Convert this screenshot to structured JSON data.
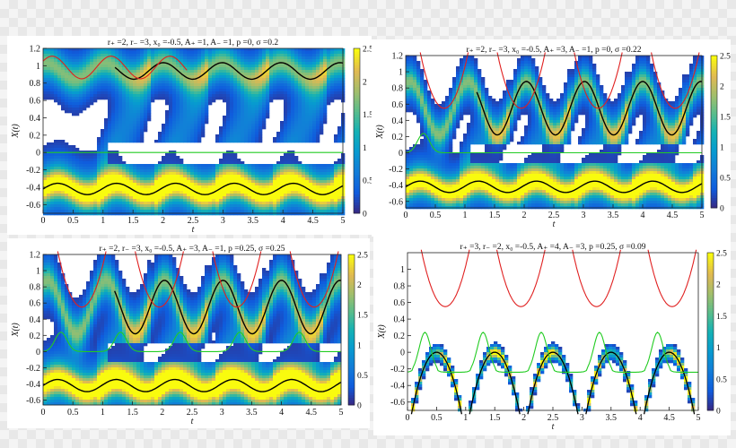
{
  "chart_data": [
    {
      "type": "heatmap",
      "title": "r₊ =2, r₋ =3, x₀ =-0.5, A₊ =1, A₋ =1, p =0, σ =0.2",
      "xlabel": "t",
      "ylabel": "X(t)",
      "xlim": [
        0,
        5
      ],
      "ylim": [
        -0.7,
        1.2
      ],
      "xticks": [
        "0",
        "0.5",
        "1",
        "1.5",
        "2",
        "2.5",
        "3",
        "3.5",
        "4",
        "4.5",
        "5"
      ],
      "yticks": [
        "-0.6",
        "-0.4",
        "-0.2",
        "0",
        "0.2",
        "0.4",
        "0.6",
        "0.8",
        "1",
        "1.2"
      ],
      "colorbar": {
        "range": [
          0,
          2.5
        ],
        "ticks": [
          "0",
          "0.5",
          "1",
          "1.5",
          "2",
          "2.5"
        ]
      },
      "params": {
        "lower_mean": -0.42,
        "lower_amp": 0.065,
        "upper_mean": 0.94,
        "upper_amp": 0.095,
        "omega": 6.4,
        "phase_shift": 1.3,
        "sigma_width": 0.12
      },
      "boundary": {
        "kind": "sine",
        "mean": 0.98,
        "amp": 0.13,
        "omega": 6.4,
        "t_end": 2.4
      },
      "green": {
        "kind": "flat",
        "value": 0.0
      }
    },
    {
      "type": "heatmap",
      "title": "r₊ =2, r₋ =3, x₀ =-0.5, A₊ =3, A₋ =1, p =0, σ =0.22",
      "xlabel": "t",
      "ylabel": "X(t)",
      "xlim": [
        0,
        5
      ],
      "ylim": [
        -0.68,
        1.2
      ],
      "xticks": [
        "0",
        "0.5",
        "1",
        "1.5",
        "2",
        "2.5",
        "3",
        "3.5",
        "4",
        "4.5",
        "5"
      ],
      "yticks": [
        "-0.6",
        "-0.4",
        "-0.2",
        "0",
        "0.2",
        "0.4",
        "0.6",
        "0.8",
        "1",
        "1.2"
      ],
      "colorbar": {
        "range": [
          0,
          2.5
        ],
        "ticks": [
          "0",
          "0.5",
          "1",
          "1.5",
          "2",
          "2.5"
        ]
      },
      "params": {
        "lower_mean": -0.42,
        "lower_amp": 0.07,
        "upper_mean": 0.55,
        "upper_amp": 0.33,
        "omega": 6.4,
        "phase_shift": 1.1,
        "sigma_width": 0.11
      },
      "boundary": {
        "kind": "parabola",
        "centers": [
          0.65,
          1.95,
          3.25,
          4.55
        ],
        "min": 0.55,
        "curv": 4.2
      },
      "green": {
        "kind": "bump",
        "centers": [
          0.3
        ],
        "height": 0.24
      }
    },
    {
      "type": "heatmap",
      "title": "r₊ =2, r₋ =3, x₀ =-0.5, A₊ =3, A₋ =1, p =0.25, σ =0.25",
      "xlabel": "t",
      "ylabel": "X(t)",
      "xlim": [
        0,
        5
      ],
      "ylim": [
        -0.66,
        1.2
      ],
      "xticks": [
        "0",
        "0.5",
        "1",
        "1.5",
        "2",
        "2.5",
        "3",
        "3.5",
        "4",
        "4.5",
        "5"
      ],
      "yticks": [
        "-0.6",
        "-0.4",
        "-0.2",
        "0",
        "0.2",
        "0.4",
        "0.6",
        "0.8",
        "1",
        "1.2"
      ],
      "colorbar": {
        "range": [
          0,
          2.5
        ],
        "ticks": [
          "0",
          "0.5",
          "1",
          "1.5",
          "2",
          "2.5"
        ]
      },
      "params": {
        "lower_mean": -0.42,
        "lower_amp": 0.075,
        "upper_mean": 0.55,
        "upper_amp": 0.33,
        "omega": 6.4,
        "phase_shift": 1.1,
        "sigma_width": 0.13
      },
      "boundary": {
        "kind": "parabola",
        "centers": [
          0.65,
          1.95,
          3.25,
          4.55
        ],
        "min": 0.55,
        "curv": 4.2
      },
      "green": {
        "kind": "bump",
        "centers": [
          0.3,
          1.3,
          2.3,
          3.3,
          4.3
        ],
        "height": 0.24
      }
    },
    {
      "type": "heatmap",
      "title": "r₊ =3, r₋ =2, x₀ =-0.5, A₊ =4, A₋ =3, p =0.25, σ =0.09",
      "xlabel": "t",
      "ylabel": "X(t)",
      "xlim": [
        0,
        5
      ],
      "ylim": [
        -0.7,
        1.2
      ],
      "xticks": [
        "0",
        "0.5",
        "1",
        "1.5",
        "2",
        "2.5",
        "3",
        "3.5",
        "4",
        "4.5",
        "5"
      ],
      "yticks": [
        "-0.6",
        "-0.4",
        "-0.2",
        "0",
        "0.2",
        "0.4",
        "0.6",
        "0.8",
        "1"
      ],
      "colorbar": {
        "range": [
          0,
          2.5
        ],
        "ticks": [
          "0",
          "0.5",
          "1",
          "1.5",
          "2",
          "2.5"
        ]
      },
      "params": {
        "arch_centers": [
          0.5,
          1.5,
          2.5,
          3.5,
          4.5
        ],
        "arch_peak": 0.0,
        "arch_curv": 4.0,
        "omega": 6.283,
        "sigma_width": 0.05
      },
      "boundary": {
        "kind": "parabola",
        "centers": [
          0.65,
          1.95,
          3.25,
          4.55
        ],
        "min": 0.55,
        "curv": 4.0
      },
      "green": {
        "kind": "bump",
        "centers": [
          0.3,
          1.3,
          2.3,
          3.3,
          4.3
        ],
        "height": 0.24,
        "baseline": -0.24
      }
    }
  ]
}
